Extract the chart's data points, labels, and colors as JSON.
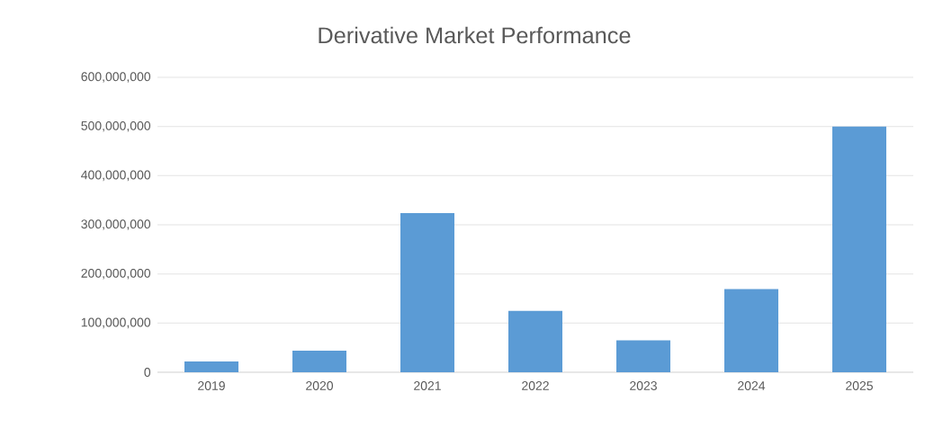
{
  "chart_data": {
    "type": "bar",
    "title": "Derivative Market Performance",
    "categories": [
      "2019",
      "2020",
      "2021",
      "2022",
      "2023",
      "2024",
      "2025"
    ],
    "values": [
      22000000,
      44000000,
      324000000,
      125000000,
      65000000,
      169000000,
      500000000
    ],
    "color": "#5b9bd5",
    "ylim": [
      0,
      600000000
    ],
    "yticks": [
      {
        "value": 0,
        "label": "0"
      },
      {
        "value": 100000000,
        "label": "100,000,000"
      },
      {
        "value": 200000000,
        "label": "200,000,000"
      },
      {
        "value": 300000000,
        "label": "300,000,000"
      },
      {
        "value": 400000000,
        "label": "400,000,000"
      },
      {
        "value": 500000000,
        "label": "500,000,000"
      },
      {
        "value": 600000000,
        "label": "600,000,000"
      }
    ],
    "grid": "y"
  }
}
